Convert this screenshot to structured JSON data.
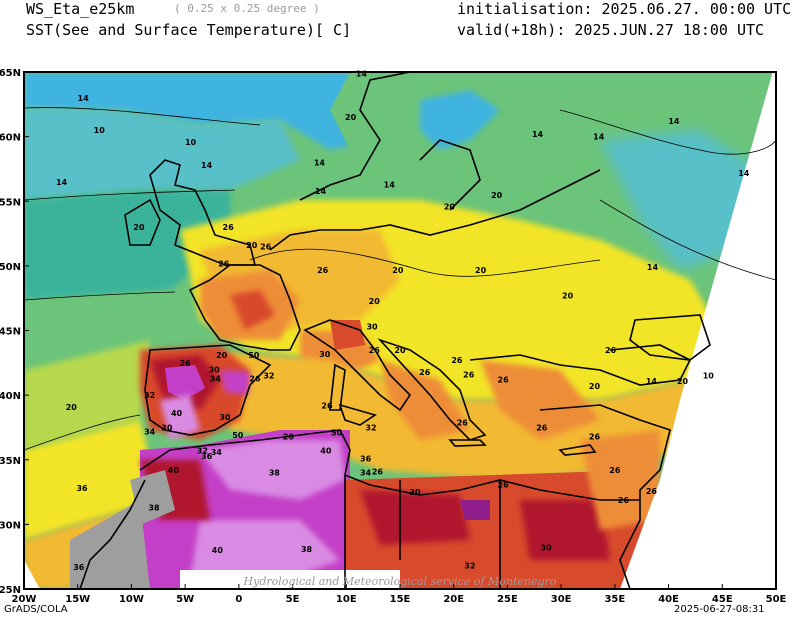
{
  "header": {
    "model": "WS_Eta_e25km",
    "resolution": "( 0.25 x 0.25 degree )",
    "variable": "SST(See and Surface Temperature)[ C]",
    "initialisation": "initialisation: 2025.06.27. 00:00 UTC",
    "valid": "valid(+18h): 2025.JUN.27 18:00 UTC"
  },
  "axes": {
    "lon_labels": [
      "20W",
      "15W",
      "10W",
      "5W",
      "0",
      "5E",
      "10E",
      "15E",
      "20E",
      "25E",
      "30E",
      "35E",
      "40E",
      "45E",
      "50E"
    ],
    "lat_labels": [
      "65N",
      "60N",
      "55N",
      "50N",
      "45N",
      "40N",
      "35N",
      "30N",
      "25N"
    ]
  },
  "contour_labels": [
    {
      "text": "14",
      "lon": -14.5,
      "lat": 63.0
    },
    {
      "text": "10",
      "lon": -13.0,
      "lat": 60.5
    },
    {
      "text": "10",
      "lon": -4.5,
      "lat": 59.6
    },
    {
      "text": "14",
      "lon": -16.5,
      "lat": 56.5
    },
    {
      "text": "14",
      "lon": -3.0,
      "lat": 57.8
    },
    {
      "text": "20",
      "lon": -9.3,
      "lat": 53.0
    },
    {
      "text": "26",
      "lon": -1.0,
      "lat": 53.0
    },
    {
      "text": "26",
      "lon": -1.4,
      "lat": 50.2
    },
    {
      "text": "14",
      "lon": 11.4,
      "lat": 64.9
    },
    {
      "text": "20",
      "lon": 10.4,
      "lat": 61.5
    },
    {
      "text": "14",
      "lon": 27.8,
      "lat": 60.2
    },
    {
      "text": "14",
      "lon": 33.5,
      "lat": 60.0
    },
    {
      "text": "14",
      "lon": 40.5,
      "lat": 61.2
    },
    {
      "text": "14",
      "lon": 47.0,
      "lat": 57.2
    },
    {
      "text": "14",
      "lon": 7.5,
      "lat": 58.0
    },
    {
      "text": "14",
      "lon": 7.6,
      "lat": 55.8
    },
    {
      "text": "14",
      "lon": 14.0,
      "lat": 56.3
    },
    {
      "text": "20",
      "lon": 19.6,
      "lat": 54.6
    },
    {
      "text": "20",
      "lon": 24.0,
      "lat": 55.5
    },
    {
      "text": "20",
      "lon": 1.2,
      "lat": 51.6
    },
    {
      "text": "26",
      "lon": 2.5,
      "lat": 51.5
    },
    {
      "text": "26",
      "lon": 7.8,
      "lat": 49.7
    },
    {
      "text": "20",
      "lon": 14.8,
      "lat": 49.7
    },
    {
      "text": "20",
      "lon": 22.5,
      "lat": 49.7
    },
    {
      "text": "14",
      "lon": 38.5,
      "lat": 49.9
    },
    {
      "text": "20",
      "lon": 30.6,
      "lat": 47.7
    },
    {
      "text": "20",
      "lon": 12.6,
      "lat": 47.3
    },
    {
      "text": "26",
      "lon": 12.6,
      "lat": 43.5
    },
    {
      "text": "20",
      "lon": 15.0,
      "lat": 43.5
    },
    {
      "text": "30",
      "lon": 12.4,
      "lat": 45.3
    },
    {
      "text": "30",
      "lon": 8.0,
      "lat": 43.2
    },
    {
      "text": "20",
      "lon": -1.6,
      "lat": 43.1
    },
    {
      "text": "26",
      "lon": -5.0,
      "lat": 42.5
    },
    {
      "text": "50",
      "lon": 1.4,
      "lat": 43.1
    },
    {
      "text": "26",
      "lon": 20.3,
      "lat": 42.7
    },
    {
      "text": "26",
      "lon": 34.6,
      "lat": 43.5
    },
    {
      "text": "20",
      "lon": 33.1,
      "lat": 40.7
    },
    {
      "text": "14",
      "lon": 38.4,
      "lat": 41.1
    },
    {
      "text": "20",
      "lon": 41.3,
      "lat": 41.1
    },
    {
      "text": "10",
      "lon": 43.7,
      "lat": 41.5
    },
    {
      "text": "26",
      "lon": 24.6,
      "lat": 41.2
    },
    {
      "text": "26",
      "lon": 17.3,
      "lat": 41.8
    },
    {
      "text": "26",
      "lon": 21.4,
      "lat": 41.6
    },
    {
      "text": "30",
      "lon": -2.3,
      "lat": 42.0
    },
    {
      "text": "34",
      "lon": -2.2,
      "lat": 41.3
    },
    {
      "text": "32",
      "lon": 2.8,
      "lat": 41.5
    },
    {
      "text": "26",
      "lon": 1.5,
      "lat": 41.3
    },
    {
      "text": "32",
      "lon": -8.3,
      "lat": 40.0
    },
    {
      "text": "20",
      "lon": -15.6,
      "lat": 39.1
    },
    {
      "text": "40",
      "lon": -5.8,
      "lat": 38.6
    },
    {
      "text": "26",
      "lon": 8.2,
      "lat": 39.2
    },
    {
      "text": "26",
      "lon": 20.8,
      "lat": 37.9
    },
    {
      "text": "26",
      "lon": 28.2,
      "lat": 37.5
    },
    {
      "text": "26",
      "lon": 33.1,
      "lat": 36.8
    },
    {
      "text": "26",
      "lon": 35.0,
      "lat": 34.2
    },
    {
      "text": "26",
      "lon": 35.8,
      "lat": 31.9
    },
    {
      "text": "34",
      "lon": -8.3,
      "lat": 37.2
    },
    {
      "text": "30",
      "lon": -6.7,
      "lat": 37.5
    },
    {
      "text": "30",
      "lon": -1.3,
      "lat": 38.3
    },
    {
      "text": "50",
      "lon": -0.1,
      "lat": 36.9
    },
    {
      "text": "26",
      "lon": 4.6,
      "lat": 36.8
    },
    {
      "text": "50",
      "lon": 9.1,
      "lat": 37.1
    },
    {
      "text": "32",
      "lon": 12.3,
      "lat": 37.5
    },
    {
      "text": "32",
      "lon": -3.4,
      "lat": 35.7
    },
    {
      "text": "34",
      "lon": -2.1,
      "lat": 35.6
    },
    {
      "text": "36",
      "lon": -3.0,
      "lat": 35.3
    },
    {
      "text": "40",
      "lon": 8.1,
      "lat": 35.7
    },
    {
      "text": "36",
      "lon": 11.8,
      "lat": 35.1
    },
    {
      "text": "34",
      "lon": 11.8,
      "lat": 34.0
    },
    {
      "text": "26",
      "lon": 12.9,
      "lat": 34.1
    },
    {
      "text": "40",
      "lon": -6.1,
      "lat": 34.2
    },
    {
      "text": "38",
      "lon": 3.3,
      "lat": 34.0
    },
    {
      "text": "30",
      "lon": 16.4,
      "lat": 32.5
    },
    {
      "text": "26",
      "lon": 24.6,
      "lat": 33.1
    },
    {
      "text": "26",
      "lon": 38.4,
      "lat": 32.6
    },
    {
      "text": "36",
      "lon": -14.6,
      "lat": 32.8
    },
    {
      "text": "38",
      "lon": -7.9,
      "lat": 31.3
    },
    {
      "text": "40",
      "lon": -2.0,
      "lat": 28.0
    },
    {
      "text": "38",
      "lon": 6.3,
      "lat": 28.1
    },
    {
      "text": "30",
      "lon": 28.6,
      "lat": 28.2
    },
    {
      "text": "32",
      "lon": 21.5,
      "lat": 26.8
    },
    {
      "text": "36",
      "lon": -14.9,
      "lat": 26.7
    }
  ],
  "watermark": "Hydrological and Meteorological service of Montenegro",
  "footer": {
    "left": "GrADS/COLA",
    "right": "2025-06-27-08:31"
  },
  "colors": {
    "sea_deep": "#3fb4e0",
    "sea_cold": "#58c0c8",
    "sea_cool": "#3bb39b",
    "land_mid": "#6cc47a",
    "warm_green": "#b6d84d",
    "yellow": "#f2e425",
    "orange_light": "#f2b932",
    "orange": "#ee8d38",
    "red": "#d84a2c",
    "dark_red": "#b0182d",
    "purple": "#8f1e8a",
    "magenta": "#c43fc7",
    "pink": "#d98be3",
    "grey": "#9e9e9e"
  }
}
